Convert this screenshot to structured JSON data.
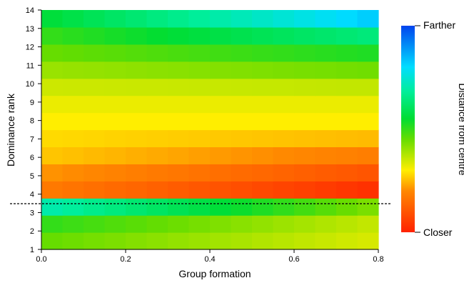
{
  "chart_data": {
    "type": "heatmap",
    "title": "",
    "xlabel": "Group formation",
    "ylabel": "Dominance rank",
    "xlim": [
      0,
      0.8
    ],
    "xticks": [
      "0.0",
      "0.2",
      "0.4",
      "0.6",
      "0.8"
    ],
    "ylim": [
      1,
      14
    ],
    "yticks": [
      "1",
      "2",
      "3",
      "4",
      "5",
      "6",
      "7",
      "8",
      "9",
      "10",
      "11",
      "12",
      "13",
      "14"
    ],
    "x_columns": 16,
    "rows": [
      {
        "rank": 1,
        "start": 0.45,
        "end": 0.34
      },
      {
        "rank": 2,
        "start": 0.5,
        "end": 0.36
      },
      {
        "rank": 3,
        "start": 0.7,
        "end": 0.43
      },
      {
        "rank": 4,
        "start": 0.17,
        "end": 0.03
      },
      {
        "rank": 5,
        "start": 0.21,
        "end": 0.1
      },
      {
        "rank": 6,
        "start": 0.26,
        "end": 0.18
      },
      {
        "rank": 7,
        "start": 0.28,
        "end": 0.25
      },
      {
        "rank": 8,
        "start": 0.3,
        "end": 0.3
      },
      {
        "rank": 9,
        "start": 0.32,
        "end": 0.32
      },
      {
        "rank": 10,
        "start": 0.35,
        "end": 0.36
      },
      {
        "rank": 11,
        "start": 0.4,
        "end": 0.44
      },
      {
        "rank": 12,
        "start": 0.45,
        "end": 0.52
      },
      {
        "rank": 13,
        "start": 0.5,
        "end": 0.64
      },
      {
        "rank": 14,
        "start": 0.56,
        "end": 0.82
      }
    ],
    "threshold_between_ranks": [
      3,
      4
    ],
    "colorbar": {
      "label": "Distance from centre",
      "top_label": "Farther",
      "bottom_label": "Closer",
      "scale": "red-yellow-green-cyan-blue"
    },
    "grid": false,
    "legend": "right"
  }
}
